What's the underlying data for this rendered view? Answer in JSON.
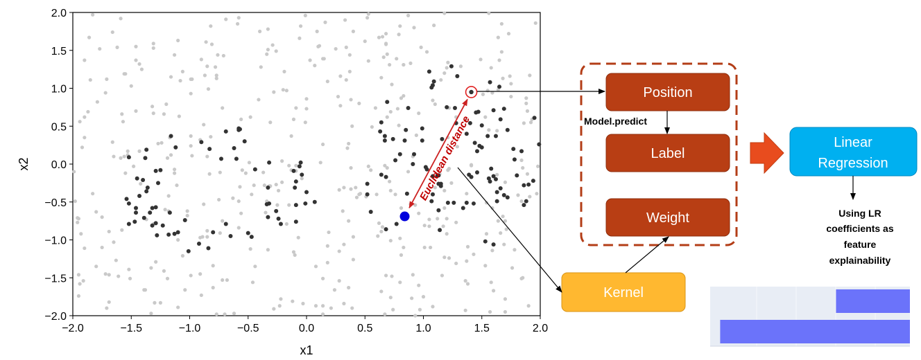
{
  "chart_data": {
    "type": "scatter",
    "title": "",
    "xlabel": "x1",
    "ylabel": "x2",
    "xlim": [
      -2.0,
      2.0
    ],
    "ylim": [
      -2.0,
      2.0
    ],
    "xticks": [
      "-2.0",
      "-1.5",
      "-1.0",
      "-0.5",
      "0.0",
      "0.5",
      "1.0",
      "1.5",
      "2.0"
    ],
    "yticks": [
      "2.0",
      "1.5",
      "1.0",
      "0.5",
      "0.0",
      "-0.5",
      "-1.0",
      "-1.5",
      "-2.0"
    ],
    "grid": false,
    "series": [
      {
        "color": "#c9c9c9",
        "points": []
      },
      {
        "color": "#333333",
        "points": []
      }
    ],
    "instance": {
      "x": 0.84,
      "y": -0.69,
      "color": "#0000dd"
    },
    "neighbor": {
      "x": 1.41,
      "y": 0.95
    },
    "annotation": "Euclidean distance"
  },
  "diagram": {
    "position_label": "Position",
    "label_label": "Label",
    "weight_label": "Weight",
    "model_predict": "Model.predict",
    "linear_regression_line1": "Linear",
    "linear_regression_line2": "Regression",
    "kernel_label": "Kernel",
    "note_lines": [
      "Using LR",
      "coefficients as",
      "feature",
      "explainability"
    ]
  },
  "colors": {
    "red_box": "#b83e14",
    "blue_box": "#00b0f0",
    "kernel_box": "#ffb830",
    "dashed_border": "#b33d17",
    "arrow_fill": "#e84c1e",
    "bar": "#6b73fa"
  },
  "mini_chart": {
    "type": "bar",
    "orientation": "horizontal",
    "values": [
      0.37,
      0.95
    ],
    "color": "#6b73fa"
  }
}
